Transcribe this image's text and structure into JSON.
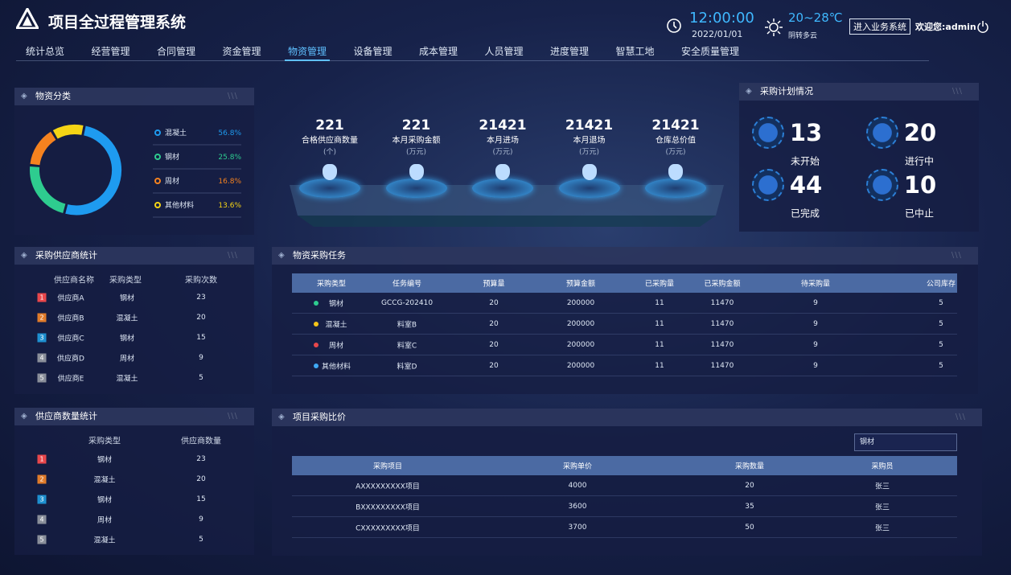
{
  "header": {
    "title": "项目全过程管理系统",
    "time": "12:00:00",
    "date": "2022/01/01",
    "temperature": "20~28℃",
    "weather": "阴转多云",
    "button": "进入业务系统",
    "welcome": "欢迎您:admin"
  },
  "nav": {
    "items": [
      "统计总览",
      "经营管理",
      "合同管理",
      "资金管理",
      "物资管理",
      "设备管理",
      "成本管理",
      "人员管理",
      "进度管理",
      "智慧工地",
      "安全质量管理"
    ],
    "active": 4
  },
  "material_category": {
    "title": "物资分类",
    "items": [
      {
        "name": "混凝土",
        "value": 56.8,
        "label": "56.8%",
        "color": "#1e9bf0"
      },
      {
        "name": "钢材",
        "value": 25.8,
        "label": "25.8%",
        "color": "#2ecc8f"
      },
      {
        "name": "周材",
        "value": 16.8,
        "label": "16.8%",
        "color": "#f5821f"
      },
      {
        "name": "其他材料",
        "value": 13.6,
        "label": "13.6%",
        "color": "#f5d415"
      }
    ]
  },
  "kpis": [
    {
      "value": 221,
      "label": "合格供应商数量",
      "unit": "(个)"
    },
    {
      "value": 221,
      "label": "本月采购金额",
      "unit": "(万元)"
    },
    {
      "value": 21421,
      "label": "本月进场",
      "unit": "(万元)"
    },
    {
      "value": 21421,
      "label": "本月退场",
      "unit": "(万元)"
    },
    {
      "value": 21421,
      "label": "仓库总价值",
      "unit": "(万元)"
    }
  ],
  "plan": {
    "title": "采购计划情况",
    "items": [
      {
        "value": 13,
        "label": "未开始"
      },
      {
        "value": 20,
        "label": "进行中"
      },
      {
        "value": 44,
        "label": "已完成"
      },
      {
        "value": 10,
        "label": "已中止"
      }
    ]
  },
  "supplier_stats": {
    "title": "采购供应商统计",
    "headers": [
      "供应商名称",
      "采购类型",
      "采购次数"
    ],
    "rank_colors": [
      "#e8474b",
      "#e07b2a",
      "#1e90d0",
      "#8a8f9a",
      "#8a8f9a"
    ],
    "rows": [
      [
        1,
        "供应商A",
        "钢材",
        23
      ],
      [
        2,
        "供应商B",
        "混凝土",
        20
      ],
      [
        3,
        "供应商C",
        "钢材",
        15
      ],
      [
        4,
        "供应商D",
        "周材",
        9
      ],
      [
        5,
        "供应商E",
        "混凝土",
        5
      ]
    ]
  },
  "supplier_count": {
    "title": "供应商数量统计",
    "headers": [
      "采购类型",
      "供应商数量"
    ],
    "rank_colors": [
      "#e8474b",
      "#e07b2a",
      "#1e90d0",
      "#8a8f9a",
      "#8a8f9a"
    ],
    "rows": [
      [
        1,
        "钢材",
        23
      ],
      [
        2,
        "混凝土",
        20
      ],
      [
        3,
        "钢材",
        15
      ],
      [
        4,
        "周材",
        9
      ],
      [
        5,
        "混凝土",
        5
      ]
    ]
  },
  "tasks": {
    "title": "物资采购任务",
    "headers": [
      "采购类型",
      "任务编号",
      "预算量",
      "预算金额",
      "已采购量",
      "已采购金额",
      "待采购量",
      "公司库存"
    ],
    "dot_colors": [
      "#2ecc8f",
      "#f5c518",
      "#e8474b",
      "#3fa9f5"
    ],
    "rows": [
      [
        "钢材",
        "GCCG-202410",
        20,
        200000,
        11,
        11470,
        9,
        5
      ],
      [
        "混凝土",
        "料室B",
        20,
        200000,
        11,
        11470,
        9,
        5
      ],
      [
        "周材",
        "料室C",
        20,
        200000,
        11,
        11470,
        9,
        5
      ],
      [
        "其他材料",
        "料室D",
        20,
        200000,
        11,
        11470,
        9,
        5
      ]
    ]
  },
  "compare": {
    "title": "项目采购比价",
    "select": "钢材",
    "headers": [
      "采购项目",
      "采购单价",
      "采购数量",
      "采购员"
    ],
    "rows": [
      [
        "AXXXXXXXXX项目",
        4000,
        20,
        "张三"
      ],
      [
        "BXXXXXXXXX项目",
        3600,
        35,
        "张三"
      ],
      [
        "CXXXXXXXXX项目",
        3700,
        50,
        "张三"
      ]
    ]
  }
}
